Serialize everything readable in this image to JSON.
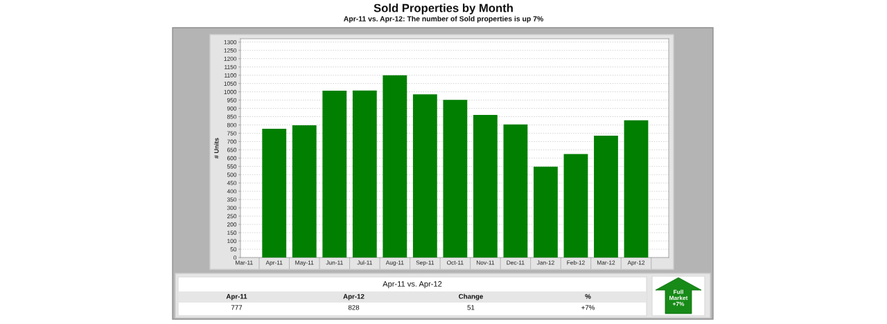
{
  "chart_data": {
    "type": "bar",
    "title": "Sold Properties by Month",
    "subtitle": "Apr-11 vs. Apr-12: The number of Sold properties is up 7%",
    "ylabel": "# Units",
    "categories": [
      "Mar-11",
      "Apr-11",
      "May-11",
      "Jun-11",
      "Jul-11",
      "Aug-11",
      "Sep-11",
      "Oct-11",
      "Nov-11",
      "Dec-11",
      "Jan-12",
      "Feb-12",
      "Mar-12",
      "Apr-12"
    ],
    "values": [
      null,
      777,
      798,
      1007,
      1008,
      1100,
      985,
      951,
      860,
      803,
      548,
      625,
      735,
      828
    ],
    "color": "#007f00",
    "ylim": [
      0,
      1320
    ],
    "yticks": [
      0,
      50,
      100,
      150,
      200,
      250,
      300,
      350,
      400,
      450,
      500,
      550,
      600,
      650,
      700,
      750,
      800,
      850,
      900,
      950,
      1000,
      1050,
      1100,
      1150,
      1200,
      1250,
      1300
    ],
    "grid": "y",
    "annotations": [
      "Apr-11 vs. Apr-12",
      "Apr-11",
      "Apr-12",
      "Change",
      "%",
      "777",
      "828",
      "51",
      "+7%",
      "Full\nMarket\n+7%"
    ]
  }
}
